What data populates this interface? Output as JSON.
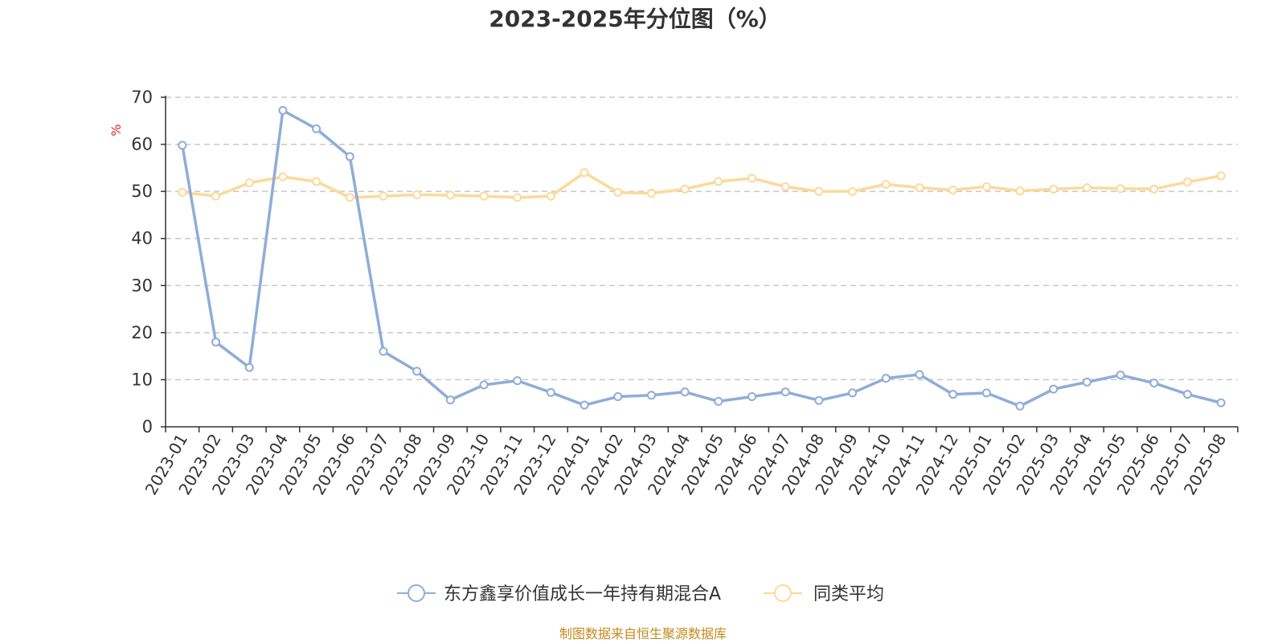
{
  "colors": {
    "series1": "#8eadd8",
    "series2": "#fdd998",
    "unit": "#e8261e",
    "source": "#c38b1c",
    "grid": "#c8c8c8",
    "axis": "#333333"
  },
  "source_text": "制图数据来自恒生聚源数据库",
  "chart_data": {
    "type": "line",
    "title": "2023-2025年分位图（%）",
    "ylabel": "%",
    "xlabel": "",
    "ylim": [
      0,
      70
    ],
    "yticks": [
      0,
      10,
      20,
      30,
      40,
      50,
      60,
      70
    ],
    "grid": true,
    "legend_position": "bottom",
    "categories": [
      "2023-01",
      "2023-02",
      "2023-03",
      "2023-04",
      "2023-05",
      "2023-06",
      "2023-07",
      "2023-08",
      "2023-09",
      "2023-10",
      "2023-11",
      "2023-12",
      "2024-01",
      "2024-02",
      "2024-03",
      "2024-04",
      "2024-05",
      "2024-06",
      "2024-07",
      "2024-08",
      "2024-09",
      "2024-10",
      "2024-11",
      "2024-12",
      "2025-01",
      "2025-02",
      "2025-03",
      "2025-04",
      "2025-05",
      "2025-06",
      "2025-07",
      "2025-08"
    ],
    "series": [
      {
        "name": "东方鑫享价值成长一年持有期混合A",
        "color": "#8eadd8",
        "values": [
          59.8,
          18.0,
          12.6,
          67.2,
          63.3,
          57.4,
          16.0,
          11.8,
          5.7,
          8.9,
          9.8,
          7.3,
          4.6,
          6.4,
          6.7,
          7.4,
          5.4,
          6.4,
          7.4,
          5.6,
          7.2,
          10.3,
          11.1,
          6.9,
          7.2,
          4.4,
          8.0,
          9.5,
          11.0,
          9.3,
          6.9,
          5.1
        ]
      },
      {
        "name": "同类平均",
        "color": "#fdd998",
        "values": [
          49.8,
          49.0,
          51.8,
          53.1,
          52.1,
          48.7,
          49.0,
          49.3,
          49.2,
          49.0,
          48.7,
          49.0,
          54.0,
          49.8,
          49.6,
          50.5,
          52.1,
          52.8,
          51.0,
          50.0,
          50.0,
          51.5,
          50.8,
          50.3,
          51.0,
          50.1,
          50.5,
          50.8,
          50.6,
          50.5,
          52.0,
          53.3
        ]
      }
    ]
  }
}
